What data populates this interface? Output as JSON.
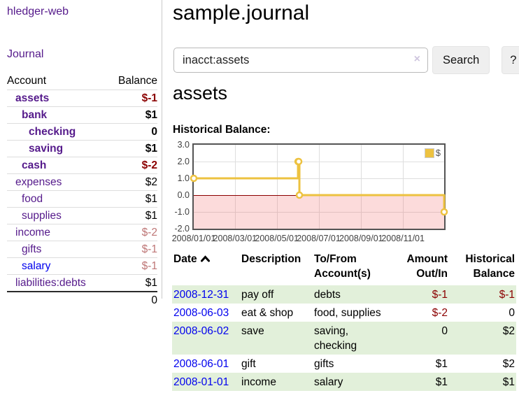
{
  "colors": {
    "link_purple": "#551A8B",
    "link_blue": "#0000EE",
    "negative_strong": "#8B0000",
    "negative_soft": "#BE7676",
    "row_green": "#E2F0DA",
    "chart_line": "#EDC240",
    "chart_border": "#545454",
    "zero_line": "#8B0000"
  },
  "sidebar": {
    "brand": "hledger-web",
    "nav_journal": "Journal",
    "table": {
      "headers": {
        "account": "Account",
        "balance": "Balance"
      },
      "rows": [
        {
          "account": "assets",
          "balance": "$-1",
          "depth": 1,
          "bold": true,
          "balance_style": "neg-strong",
          "link_style": "purple"
        },
        {
          "account": "bank",
          "balance": "$1",
          "depth": 2,
          "bold": true,
          "balance_style": "pos",
          "link_style": "purple"
        },
        {
          "account": "checking",
          "balance": "0",
          "depth": 3,
          "bold": true,
          "balance_style": "pos",
          "link_style": "purple"
        },
        {
          "account": "saving",
          "balance": "$1",
          "depth": 3,
          "bold": true,
          "balance_style": "pos",
          "link_style": "purple"
        },
        {
          "account": "cash",
          "balance": "$-2",
          "depth": 2,
          "bold": true,
          "balance_style": "neg-strong",
          "link_style": "purple"
        },
        {
          "account": "expenses",
          "balance": "$2",
          "depth": 1,
          "bold": false,
          "balance_style": "pos",
          "link_style": "purple"
        },
        {
          "account": "food",
          "balance": "$1",
          "depth": 2,
          "bold": false,
          "balance_style": "pos",
          "link_style": "purple"
        },
        {
          "account": "supplies",
          "balance": "$1",
          "depth": 2,
          "bold": false,
          "balance_style": "pos",
          "link_style": "purple"
        },
        {
          "account": "income",
          "balance": "$-2",
          "depth": 1,
          "bold": false,
          "balance_style": "neg-soft",
          "link_style": "purple"
        },
        {
          "account": "gifts",
          "balance": "$-1",
          "depth": 2,
          "bold": false,
          "balance_style": "neg-soft",
          "link_style": "purple"
        },
        {
          "account": "salary",
          "balance": "$-1",
          "depth": 2,
          "bold": false,
          "balance_style": "neg-soft",
          "link_style": "blue"
        },
        {
          "account": "liabilities:debts",
          "balance": "$1",
          "depth": 1,
          "bold": false,
          "balance_style": "pos",
          "link_style": "purple"
        }
      ],
      "total": "0"
    }
  },
  "main": {
    "title": "sample.journal",
    "search": {
      "value": "inacct:assets",
      "clear_icon": "×",
      "search_button": "Search",
      "help_button": "?"
    },
    "account_heading": "assets",
    "chart_title": "Historical Balance:"
  },
  "chart_data": {
    "type": "line",
    "step": true,
    "title": "Historical Balance of assets",
    "legend": [
      {
        "label": "$",
        "color": "#EDC240"
      }
    ],
    "legend_position": "top-right",
    "grid": true,
    "ylim": [
      -2.0,
      3.0
    ],
    "yticks": [
      "3.0",
      "2.0",
      "1.0",
      "0.0",
      "-1.0",
      "-2.0"
    ],
    "ytick_values": [
      3,
      2,
      1,
      0,
      -1,
      -2
    ],
    "xticks": [
      "2008/01/01",
      "2008/03/01",
      "2008/05/01",
      "2008/07/01",
      "2008/09/01",
      "2008/11/01"
    ],
    "x_range": [
      "2008-01-01",
      "2008-12-31"
    ],
    "negative_region_shaded": true,
    "series": [
      {
        "name": "$",
        "points": [
          {
            "x": "2008-01-01",
            "y": 1
          },
          {
            "x": "2008-06-01",
            "y": 2
          },
          {
            "x": "2008-06-02",
            "y": 2
          },
          {
            "x": "2008-06-03",
            "y": 0
          },
          {
            "x": "2008-12-31",
            "y": -1
          }
        ]
      }
    ]
  },
  "register": {
    "headers": {
      "date": "Date",
      "sort": "ascending",
      "description": "Description",
      "accounts": "To/From Account(s)",
      "amount": "Amount Out/In",
      "balance": "Historical Balance"
    },
    "rows": [
      {
        "date": "2008-12-31",
        "description": "pay off",
        "accounts": "debts",
        "amount": "$-1",
        "amount_style": "neg-strong",
        "balance": "$-1",
        "balance_style": "neg-strong"
      },
      {
        "date": "2008-06-03",
        "description": "eat & shop",
        "accounts": "food, supplies",
        "amount": "$-2",
        "amount_style": "neg-strong",
        "balance": "0",
        "balance_style": "pos"
      },
      {
        "date": "2008-06-02",
        "description": "save",
        "accounts": "saving, checking",
        "amount": "0",
        "amount_style": "pos",
        "balance": "$2",
        "balance_style": "pos"
      },
      {
        "date": "2008-06-01",
        "description": "gift",
        "accounts": "gifts",
        "amount": "$1",
        "amount_style": "pos",
        "balance": "$2",
        "balance_style": "pos"
      },
      {
        "date": "2008-01-01",
        "description": "income",
        "accounts": "salary",
        "amount": "$1",
        "amount_style": "pos",
        "balance": "$1",
        "balance_style": "pos"
      }
    ]
  }
}
